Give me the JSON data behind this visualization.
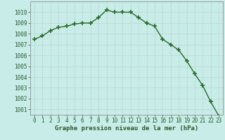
{
  "x": [
    0,
    1,
    2,
    3,
    4,
    5,
    6,
    7,
    8,
    9,
    10,
    11,
    12,
    13,
    14,
    15,
    16,
    17,
    18,
    19,
    20,
    21,
    22,
    23
  ],
  "y": [
    1007.5,
    1007.8,
    1008.3,
    1008.6,
    1008.7,
    1008.9,
    1009.0,
    1009.0,
    1009.5,
    1010.2,
    1010.0,
    1010.0,
    1010.0,
    1009.5,
    1009.0,
    1008.7,
    1007.5,
    1007.0,
    1006.5,
    1005.5,
    1004.3,
    1003.2,
    1001.7,
    1000.4
  ],
  "line_color": "#2d6a2d",
  "marker": "+",
  "marker_size": 4,
  "marker_lw": 1.2,
  "line_width": 1.0,
  "bg_color": "#c8ece8",
  "grid_color": "#b8d8d0",
  "title": "Graphe pression niveau de la mer (hPa)",
  "xlim": [
    -0.5,
    23.5
  ],
  "ylim": [
    1000.5,
    1011.0
  ],
  "yticks": [
    1001,
    1002,
    1003,
    1004,
    1005,
    1006,
    1007,
    1008,
    1009,
    1010
  ],
  "xticks": [
    0,
    1,
    2,
    3,
    4,
    5,
    6,
    7,
    8,
    9,
    10,
    11,
    12,
    13,
    14,
    15,
    16,
    17,
    18,
    19,
    20,
    21,
    22,
    23
  ],
  "tick_fontsize": 5.5,
  "title_fontsize": 6.5,
  "tick_color": "#2d5a2d",
  "axis_color": "#2d5a2d",
  "spine_color": "#808080"
}
